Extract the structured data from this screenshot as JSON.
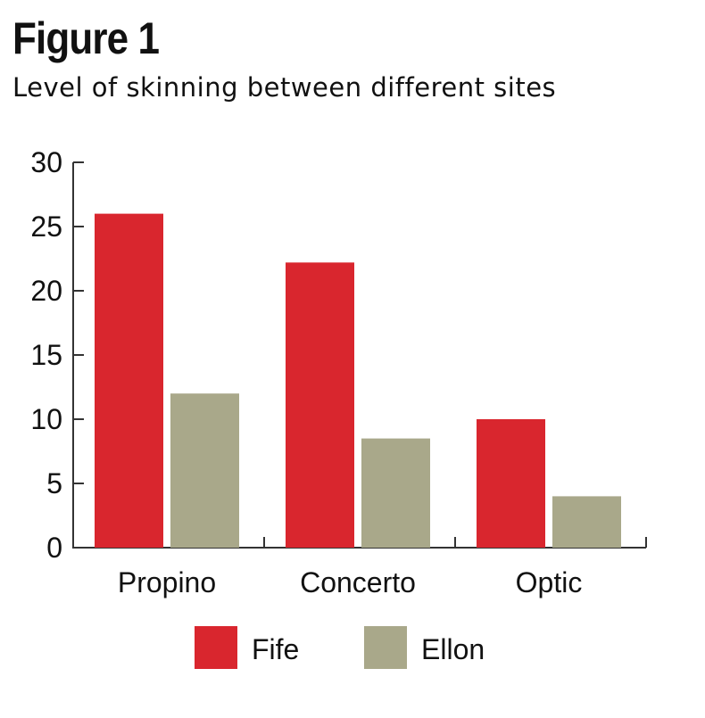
{
  "header": {
    "title": "Figure 1",
    "subtitle": "Level of skinning between different sites"
  },
  "colors": {
    "Fife": "#d9262e",
    "Ellon": "#a9a88a",
    "axis": "#333333"
  },
  "chart_data": {
    "type": "bar",
    "categories": [
      "Propino",
      "Concerto",
      "Optic"
    ],
    "series": [
      {
        "name": "Fife",
        "values": [
          26,
          22.2,
          10
        ]
      },
      {
        "name": "Ellon",
        "values": [
          12,
          8.5,
          4
        ]
      }
    ],
    "ylim": [
      0,
      30
    ],
    "yticks": [
      0,
      5,
      10,
      15,
      20,
      25,
      30
    ],
    "xlabel": "",
    "ylabel": "",
    "grid": false,
    "legend": "bottom"
  }
}
